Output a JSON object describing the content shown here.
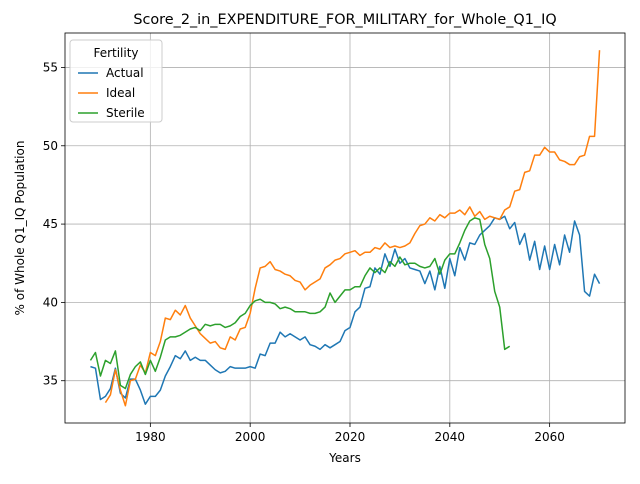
{
  "chart_data": {
    "type": "line",
    "title": "Score_2_in_EXPENDITURE_FOR_MILITARY_for_Whole_Q1_IQ",
    "xlabel": "Years",
    "ylabel": "% of Whole Q1_IQ Population",
    "legend_title": "Fertility",
    "legend": "upper left",
    "grid": true,
    "xlim": [
      1962.9,
      2075.1
    ],
    "ylim": [
      32.3,
      57.2
    ],
    "xticks": [
      1980,
      2000,
      2020,
      2040,
      2060
    ],
    "yticks": [
      35,
      40,
      45,
      50,
      55
    ],
    "x": [
      1968,
      1969,
      1970,
      1971,
      1972,
      1973,
      1974,
      1975,
      1976,
      1977,
      1978,
      1979,
      1980,
      1981,
      1982,
      1983,
      1984,
      1985,
      1986,
      1987,
      1988,
      1989,
      1990,
      1991,
      1992,
      1993,
      1994,
      1995,
      1996,
      1997,
      1998,
      1999,
      2000,
      2001,
      2002,
      2003,
      2004,
      2005,
      2006,
      2007,
      2008,
      2009,
      2010,
      2011,
      2012,
      2013,
      2014,
      2015,
      2016,
      2017,
      2018,
      2019,
      2020,
      2021,
      2022,
      2023,
      2024,
      2025,
      2026,
      2027,
      2028,
      2029,
      2030,
      2031,
      2032,
      2033,
      2034,
      2035,
      2036,
      2037,
      2038,
      2039,
      2040,
      2041,
      2042,
      2043,
      2044,
      2045,
      2046,
      2047,
      2048,
      2049,
      2050,
      2051,
      2052,
      2053,
      2054,
      2055,
      2056,
      2057,
      2058,
      2059,
      2060,
      2061,
      2062,
      2063,
      2064,
      2065,
      2066,
      2067,
      2068,
      2069,
      2070
    ],
    "series": [
      {
        "name": "Actual",
        "color": "#1f77b4",
        "values": [
          35.9,
          35.8,
          33.8,
          34.0,
          34.5,
          35.8,
          34.2,
          33.9,
          35.1,
          35.1,
          34.4,
          33.5,
          34.0,
          34.0,
          34.4,
          35.3,
          35.9,
          36.6,
          36.4,
          36.9,
          36.3,
          36.5,
          36.3,
          36.3,
          36.0,
          35.7,
          35.5,
          35.6,
          35.9,
          35.8,
          35.8,
          35.8,
          35.9,
          35.8,
          36.7,
          36.6,
          37.4,
          37.4,
          38.1,
          37.8,
          38.0,
          37.8,
          37.6,
          37.8,
          37.3,
          37.2,
          37.0,
          37.3,
          37.1,
          37.3,
          37.5,
          38.2,
          38.4,
          39.4,
          39.7,
          40.9,
          41.0,
          42.2,
          41.8,
          43.1,
          42.3,
          43.4,
          42.5,
          42.8,
          42.2,
          42.1,
          42.0,
          41.2,
          42.0,
          40.8,
          42.3,
          40.9,
          42.8,
          41.7,
          43.5,
          42.7,
          43.8,
          43.7,
          44.3,
          44.6,
          44.9,
          45.4,
          45.3,
          45.5,
          44.7,
          45.1,
          43.7,
          44.4,
          42.7,
          43.9,
          42.1,
          43.6,
          42.1,
          43.7,
          42.4,
          44.3,
          43.2,
          45.2,
          44.3,
          40.7,
          40.4,
          41.8,
          41.2
        ]
      },
      {
        "name": "Ideal",
        "color": "#ff7f0e",
        "values": [
          null,
          null,
          null,
          33.6,
          34.1,
          35.7,
          34.4,
          33.4,
          35.0,
          35.1,
          36.0,
          35.5,
          36.8,
          36.6,
          37.5,
          39.0,
          38.9,
          39.5,
          39.2,
          39.8,
          39.0,
          38.5,
          38.0,
          37.7,
          37.4,
          37.5,
          37.1,
          37.0,
          37.8,
          37.6,
          38.3,
          38.4,
          39.3,
          40.9,
          42.2,
          42.3,
          42.6,
          42.1,
          42.0,
          41.8,
          41.7,
          41.4,
          41.3,
          40.8,
          41.1,
          41.3,
          41.5,
          42.2,
          42.4,
          42.7,
          42.8,
          43.1,
          43.2,
          43.3,
          43.0,
          43.2,
          43.2,
          43.5,
          43.4,
          43.8,
          43.5,
          43.6,
          43.5,
          43.6,
          43.8,
          44.4,
          44.9,
          45.0,
          45.4,
          45.2,
          45.6,
          45.4,
          45.7,
          45.7,
          45.9,
          45.6,
          46.1,
          45.5,
          45.8,
          45.3,
          45.5,
          45.4,
          45.3,
          45.9,
          46.1,
          47.1,
          47.2,
          48.3,
          48.4,
          49.4,
          49.4,
          49.9,
          49.6,
          49.6,
          49.1,
          49.0,
          48.8,
          48.8,
          49.3,
          49.4,
          50.6,
          50.6,
          56.1
        ]
      },
      {
        "name": "Sterile",
        "color": "#2ca02c",
        "values": [
          36.3,
          36.8,
          35.3,
          36.3,
          36.1,
          36.9,
          34.7,
          34.5,
          35.4,
          35.9,
          36.2,
          35.4,
          36.3,
          35.6,
          36.5,
          37.6,
          37.8,
          37.8,
          37.9,
          38.1,
          38.3,
          38.4,
          38.2,
          38.6,
          38.5,
          38.6,
          38.6,
          38.4,
          38.5,
          38.7,
          39.1,
          39.3,
          39.8,
          40.1,
          40.2,
          40.0,
          40.0,
          39.9,
          39.6,
          39.7,
          39.6,
          39.4,
          39.4,
          39.4,
          39.3,
          39.3,
          39.4,
          39.7,
          40.6,
          40.0,
          40.4,
          40.8,
          40.8,
          41.0,
          41.0,
          41.7,
          42.2,
          41.9,
          42.2,
          41.9,
          42.6,
          42.3,
          42.9,
          42.4,
          42.5,
          42.5,
          42.3,
          42.2,
          42.3,
          42.8,
          41.8,
          42.7,
          43.1,
          43.1,
          43.8,
          44.6,
          45.2,
          45.4,
          45.3,
          43.7,
          42.8,
          40.7,
          39.7,
          37.0,
          37.2,
          null,
          null,
          null,
          null,
          null,
          null,
          null,
          null,
          null,
          null,
          null,
          null,
          null,
          null,
          null,
          null,
          null,
          null
        ]
      }
    ]
  }
}
